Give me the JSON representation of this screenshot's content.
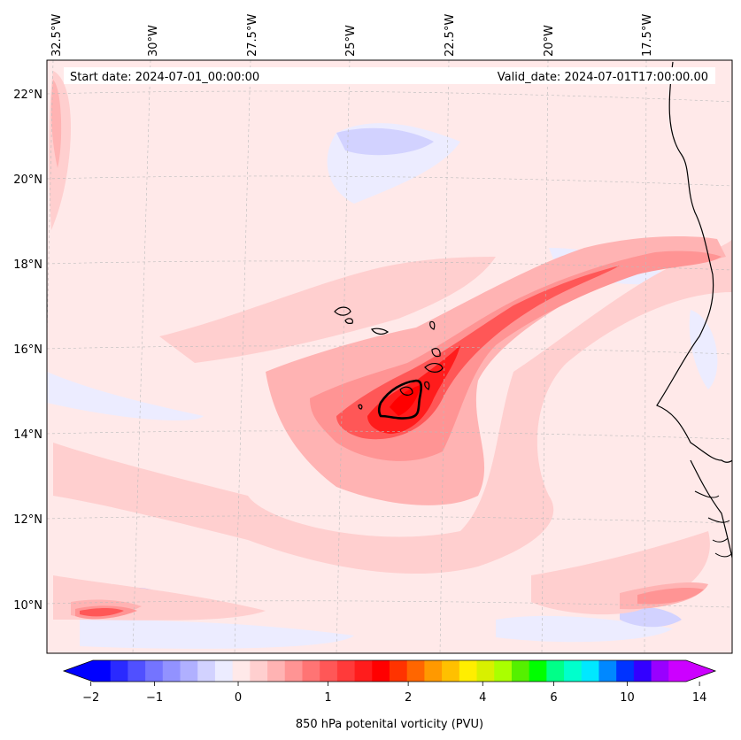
{
  "map": {
    "start_date": "Start date: 2024-07-01_00:00:00",
    "valid_date": "Valid_date: 2024-07-01T17:00:00.00",
    "lon_labels": [
      "32.5°W",
      "30°W",
      "27.5°W",
      "25°W",
      "22.5°W",
      "20°W",
      "17.5°W"
    ],
    "lat_labels": [
      "22°N",
      "20°N",
      "18°N",
      "16°N",
      "14°N",
      "12°N",
      "10°N"
    ],
    "colorbar": {
      "title": "850 hPa potenital vorticity (PVU)",
      "tick_labels": [
        "−2",
        "−1",
        "0",
        "1",
        "2",
        "4",
        "6",
        "10",
        "14"
      ],
      "colors": [
        "#0000ff",
        "#2a2aff",
        "#5050ff",
        "#7474ff",
        "#9292ff",
        "#b0b0ff",
        "#d2d2ff",
        "#ececff",
        "#ffe9e9",
        "#ffcfcf",
        "#ffb3b3",
        "#ff9494",
        "#ff7474",
        "#ff5757",
        "#ff3a3a",
        "#ff1c1c",
        "#ff0000",
        "#ff3300",
        "#ff6600",
        "#ff9900",
        "#ffc000",
        "#ffee00",
        "#d8f000",
        "#aaff00",
        "#55f000",
        "#00ff00",
        "#00ff88",
        "#00ffcc",
        "#00e8ff",
        "#0088ff",
        "#0033ff",
        "#3300ff",
        "#9900ff",
        "#cc00ff"
      ],
      "low_extend": "#0000ff",
      "high_extend": "#cc00ff"
    },
    "field_colors": {
      "background": "#ffe9e9",
      "light_pink": "#ffcfcf",
      "pink": "#ffb3b3",
      "mid_red": "#ff9494",
      "red": "#ff5757",
      "strong_red": "#ff1c1c",
      "light_blue": "#ececff",
      "blue": "#d2d2ff",
      "mid_blue": "#b0b0ff"
    }
  }
}
